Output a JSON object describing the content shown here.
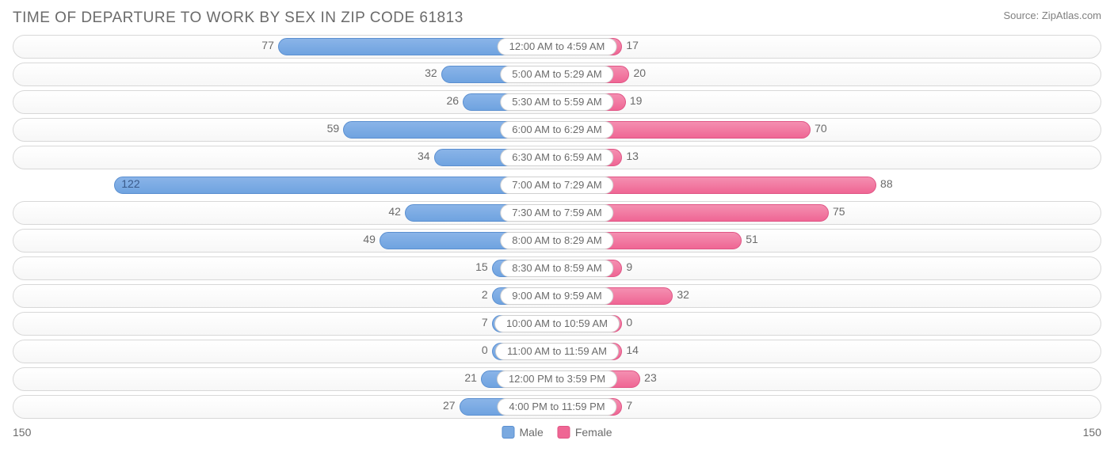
{
  "title": "TIME OF DEPARTURE TO WORK BY SEX IN ZIP CODE 61813",
  "source": "Source: ZipAtlas.com",
  "chart": {
    "type": "diverging-bar",
    "axis_max": 150,
    "axis_left_label": "150",
    "axis_right_label": "150",
    "min_bar_pct": 12,
    "colors": {
      "male_fill": "#7aa9e0",
      "male_border": "#5a8fd0",
      "female_fill": "#ef6694",
      "female_border": "#e05585",
      "row_border": "#d8d8d8",
      "text": "#6b6b6b",
      "background": "#ffffff"
    },
    "legend": {
      "male": "Male",
      "female": "Female"
    },
    "rows": [
      {
        "category": "12:00 AM to 4:59 AM",
        "male": 77,
        "female": 17,
        "no_border": false
      },
      {
        "category": "5:00 AM to 5:29 AM",
        "male": 32,
        "female": 20,
        "no_border": false
      },
      {
        "category": "5:30 AM to 5:59 AM",
        "male": 26,
        "female": 19,
        "no_border": false
      },
      {
        "category": "6:00 AM to 6:29 AM",
        "male": 59,
        "female": 70,
        "no_border": false
      },
      {
        "category": "6:30 AM to 6:59 AM",
        "male": 34,
        "female": 13,
        "no_border": false
      },
      {
        "category": "7:00 AM to 7:29 AM",
        "male": 122,
        "female": 88,
        "no_border": true
      },
      {
        "category": "7:30 AM to 7:59 AM",
        "male": 42,
        "female": 75,
        "no_border": false
      },
      {
        "category": "8:00 AM to 8:29 AM",
        "male": 49,
        "female": 51,
        "no_border": false
      },
      {
        "category": "8:30 AM to 8:59 AM",
        "male": 15,
        "female": 9,
        "no_border": false
      },
      {
        "category": "9:00 AM to 9:59 AM",
        "male": 2,
        "female": 32,
        "no_border": false
      },
      {
        "category": "10:00 AM to 10:59 AM",
        "male": 7,
        "female": 0,
        "no_border": false
      },
      {
        "category": "11:00 AM to 11:59 AM",
        "male": 0,
        "female": 14,
        "no_border": false
      },
      {
        "category": "12:00 PM to 3:59 PM",
        "male": 21,
        "female": 23,
        "no_border": false
      },
      {
        "category": "4:00 PM to 11:59 PM",
        "male": 27,
        "female": 7,
        "no_border": false
      }
    ]
  }
}
